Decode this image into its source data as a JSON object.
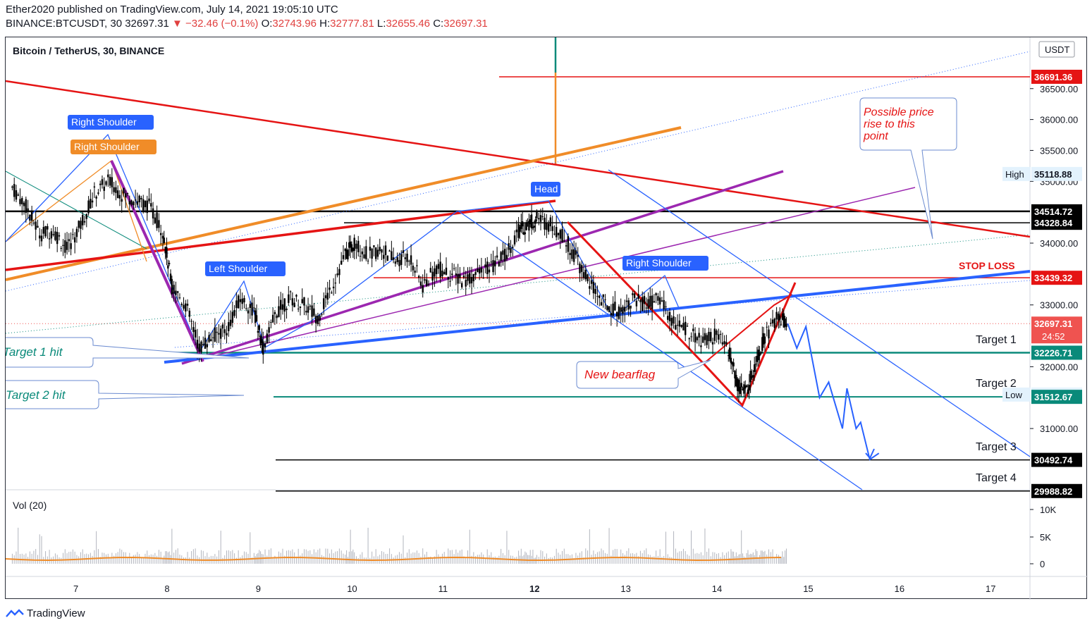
{
  "header": {
    "published": "Ether2020 published on TradingView.com, July 14, 2021 19:05:10 UTC",
    "symbol": "BINANCE:BTCUSDT, 30",
    "last": "32697.31",
    "change": "−32.46 (−0.1%)",
    "o_label": "O:",
    "o": "32743.96",
    "h_label": "H:",
    "h": "32777.81",
    "l_label": "L:",
    "l": "32655.46",
    "c_label": "C:",
    "c": "32697.31"
  },
  "legend": {
    "title": "Bitcoin / TetherUS, 30, BINANCE",
    "volume": "Vol (20)"
  },
  "footer": {
    "brand": "TradingView"
  },
  "colors": {
    "up": "#26a69a",
    "down": "#ef5350",
    "candle": "#000000",
    "blue": "#2962ff",
    "teal": "#0a8a7a",
    "red": "#e51414",
    "orange": "#f08c28",
    "purple": "#9c27b0"
  },
  "chart_data": {
    "type": "candlestick",
    "currency": "USDT",
    "x_ticks": [
      "7",
      "8",
      "9",
      "10",
      "11",
      "12",
      "13",
      "14",
      "15",
      "16",
      "17"
    ],
    "y_ticks": [
      36500,
      36000,
      35500,
      35000,
      34000,
      33000,
      32000,
      31000
    ],
    "y_range": [
      29900,
      37000
    ],
    "volume_ticks": [
      "10K",
      "5K",
      "0"
    ],
    "price_badges": [
      {
        "label": "36691.36",
        "value": 36691.36,
        "color": "#e51414"
      },
      {
        "label": "35118.88",
        "value": 35118.88,
        "color": "#e3f2fd",
        "text_color": "#131722",
        "tag": "High"
      },
      {
        "label": "34514.72",
        "value": 34514.72,
        "color": "#000000"
      },
      {
        "label": "34328.84",
        "value": 34328.84,
        "color": "#000000"
      },
      {
        "label": "33439.32",
        "value": 33439.32,
        "color": "#e51414"
      },
      {
        "label": "32697.31",
        "value": 32697.31,
        "color": "#ef5350",
        "sub": "24:52"
      },
      {
        "label": "32226.71",
        "value": 32226.71,
        "color": "#0a8a7a"
      },
      {
        "label": "31550.00",
        "value": 31550.0,
        "color": "#e3f2fd",
        "text_color": "#131722",
        "tag": "Low"
      },
      {
        "label": "31512.67",
        "value": 31512.67,
        "color": "#0a8a7a"
      },
      {
        "label": "30492.74",
        "value": 30492.74,
        "color": "#000000"
      },
      {
        "label": "29988.82",
        "value": 29988.82,
        "color": "#000000"
      }
    ],
    "annotations": {
      "right_shoulder_1": "Right Shoulder",
      "right_shoulder_2": "Right Shoulder",
      "head": "Head",
      "left_shoulder": "Left Shoulder",
      "right_shoulder_3": "Right Shoulder",
      "stop_loss": "STOP LOSS",
      "target1": "Target 1",
      "target2": "Target 2",
      "target3": "Target 3",
      "target4": "Target 4",
      "target1_hit": "Target 1 hit",
      "target2_hit": "Target 2 hit",
      "new_bearflag": "New bearflag",
      "possible_rise": [
        "Possible price",
        "rise to this",
        "point"
      ]
    },
    "price_path": [
      [
        6.3,
        34900
      ],
      [
        6.45,
        34600
      ],
      [
        6.6,
        34150
      ],
      [
        6.75,
        34200
      ],
      [
        6.9,
        33900
      ],
      [
        7.05,
        34300
      ],
      [
        7.2,
        34800
      ],
      [
        7.35,
        35000
      ],
      [
        7.5,
        34800
      ],
      [
        7.65,
        34700
      ],
      [
        7.8,
        34600
      ],
      [
        7.95,
        34200
      ],
      [
        8.05,
        33300
      ],
      [
        8.2,
        33000
      ],
      [
        8.35,
        32300
      ],
      [
        8.5,
        32500
      ],
      [
        8.65,
        32600
      ],
      [
        8.8,
        33100
      ],
      [
        8.95,
        32900
      ],
      [
        9.05,
        32300
      ],
      [
        9.2,
        32900
      ],
      [
        9.35,
        33100
      ],
      [
        9.5,
        33000
      ],
      [
        9.65,
        32800
      ],
      [
        9.8,
        33300
      ],
      [
        9.95,
        33800
      ],
      [
        10.05,
        34000
      ],
      [
        10.2,
        33800
      ],
      [
        10.35,
        33900
      ],
      [
        10.5,
        33700
      ],
      [
        10.65,
        33800
      ],
      [
        10.8,
        33300
      ],
      [
        10.95,
        33600
      ],
      [
        11.1,
        33500
      ],
      [
        11.25,
        33400
      ],
      [
        11.4,
        33500
      ],
      [
        11.55,
        33600
      ],
      [
        11.7,
        33800
      ],
      [
        11.85,
        34200
      ],
      [
        11.95,
        34300
      ],
      [
        12.05,
        34400
      ],
      [
        12.2,
        34300
      ],
      [
        12.35,
        34100
      ],
      [
        12.5,
        33700
      ],
      [
        12.65,
        33300
      ],
      [
        12.8,
        33000
      ],
      [
        12.95,
        32900
      ],
      [
        13.1,
        33100
      ],
      [
        13.25,
        33000
      ],
      [
        13.4,
        33100
      ],
      [
        13.55,
        32700
      ],
      [
        13.7,
        32600
      ],
      [
        13.85,
        32400
      ],
      [
        14.0,
        32500
      ],
      [
        14.15,
        32300
      ],
      [
        14.25,
        31700
      ],
      [
        14.35,
        31600
      ],
      [
        14.45,
        32100
      ],
      [
        14.55,
        32500
      ],
      [
        14.7,
        32800
      ],
      [
        14.8,
        32700
      ]
    ],
    "projection": [
      [
        14.8,
        32700
      ],
      [
        14.9,
        32300
      ],
      [
        15.0,
        32650
      ],
      [
        15.15,
        31500
      ],
      [
        15.25,
        31750
      ],
      [
        15.4,
        31000
      ],
      [
        15.45,
        31650
      ],
      [
        15.55,
        31000
      ],
      [
        15.6,
        31100
      ],
      [
        15.7,
        30500
      ],
      [
        15.8,
        30600
      ]
    ],
    "volume_typical": 1000,
    "volume_ma": 1300
  }
}
